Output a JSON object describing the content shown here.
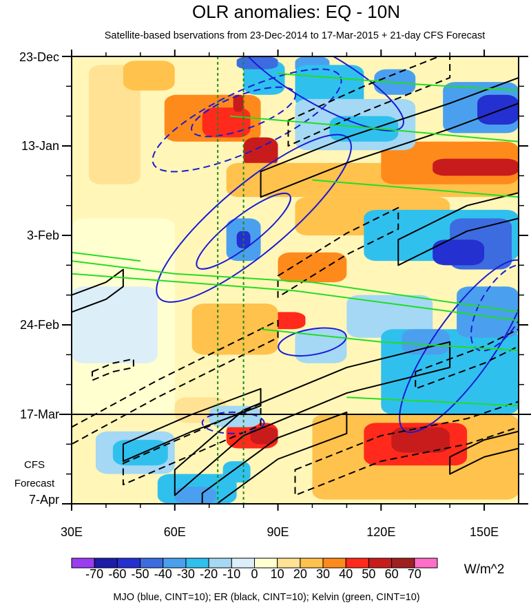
{
  "chart_data": {
    "type": "heatmap",
    "title": "OLR anomalies: EQ - 10N",
    "subtitle": "Satellite-based bservations from 23-Dec-2014 to 17-Mar-2015 + 21-day CFS Forecast",
    "x_axis": {
      "label": "",
      "range": [
        30,
        160
      ],
      "ticks": [
        {
          "value": 30,
          "label": "30E"
        },
        {
          "value": 60,
          "label": "60E"
        },
        {
          "value": 90,
          "label": "90E"
        },
        {
          "value": 120,
          "label": "120E"
        },
        {
          "value": 150,
          "label": "150E"
        }
      ]
    },
    "y_axis": {
      "label": "",
      "range_days": [
        0,
        105
      ],
      "ticks": [
        {
          "day": 0,
          "label": "23-Dec"
        },
        {
          "day": 21,
          "label": "13-Jan"
        },
        {
          "day": 42,
          "label": "3-Feb"
        },
        {
          "day": 63,
          "label": "24-Feb"
        },
        {
          "day": 84,
          "label": "17-Mar"
        },
        {
          "day": 105,
          "label": "7-Apr"
        }
      ],
      "forecast_label_lines": [
        "CFS",
        "Forecast"
      ]
    },
    "forecast_start_day": 84,
    "reference_longitudes": [
      72.5,
      80
    ],
    "colorbar": {
      "units": "W/m^2",
      "levels": [
        -70,
        -60,
        -50,
        -40,
        -30,
        -20,
        -10,
        0,
        10,
        20,
        30,
        40,
        50,
        60,
        70
      ],
      "tick_labels": [
        "-70",
        "-60",
        "-50",
        "-40",
        "-30",
        "-20",
        "-10",
        "0",
        "10",
        "20",
        "30",
        "40",
        "50",
        "60",
        "70"
      ],
      "colors": [
        "#9a3cf0",
        "#1c1ca8",
        "#2430d0",
        "#3c6ce0",
        "#4aa0ee",
        "#30c0ee",
        "#a4d8f4",
        "#dceef8",
        "#ffffd0",
        "#ffe294",
        "#ffc24c",
        "#ff8a1c",
        "#ff2a1c",
        "#c81c1c",
        "#a02020",
        "#ff6ec8"
      ]
    },
    "anomaly_cells": [
      {
        "lon": [
          35,
          50
        ],
        "day": [
          2,
          30
        ],
        "value": 15
      },
      {
        "lon": [
          57,
          85
        ],
        "day": [
          9,
          20
        ],
        "value": 30
      },
      {
        "lon": [
          80,
          90
        ],
        "day": [
          19,
          26
        ],
        "value": 50
      },
      {
        "lon": [
          68,
          82
        ],
        "day": [
          12,
          19
        ],
        "value": 40
      },
      {
        "lon": [
          77,
          80
        ],
        "day": [
          9,
          13
        ],
        "value": 50
      },
      {
        "lon": [
          45,
          60
        ],
        "day": [
          1,
          8
        ],
        "value": 20
      },
      {
        "lon": [
          75,
          160
        ],
        "day": [
          25,
          33
        ],
        "value": 25
      },
      {
        "lon": [
          120,
          160
        ],
        "day": [
          20,
          30
        ],
        "value": 30
      },
      {
        "lon": [
          135,
          160
        ],
        "day": [
          24,
          28
        ],
        "value": 50
      },
      {
        "lon": [
          90,
          110
        ],
        "day": [
          46,
          53
        ],
        "value": 30
      },
      {
        "lon": [
          95,
          140
        ],
        "day": [
          33,
          42
        ],
        "value": 20
      },
      {
        "lon": [
          85,
          98
        ],
        "day": [
          60,
          64
        ],
        "value": 40
      },
      {
        "lon": [
          65,
          90
        ],
        "day": [
          58,
          70
        ],
        "value": 20
      },
      {
        "lon": [
          75,
          90
        ],
        "day": [
          86,
          92
        ],
        "value": 40
      },
      {
        "lon": [
          82,
          90
        ],
        "day": [
          87,
          91
        ],
        "value": 50
      },
      {
        "lon": [
          100,
          160
        ],
        "day": [
          84,
          104
        ],
        "value": 25
      },
      {
        "lon": [
          115,
          145
        ],
        "day": [
          86,
          96
        ],
        "value": 40
      },
      {
        "lon": [
          123,
          140
        ],
        "day": [
          87,
          93
        ],
        "value": 50
      },
      {
        "lon": [
          60,
          75
        ],
        "day": [
          80,
          86
        ],
        "value": 15
      },
      {
        "lon": [
          30,
          60
        ],
        "day": [
          38,
          84
        ],
        "value": 5
      },
      {
        "lon": [
          80,
          92
        ],
        "day": [
          1,
          9
        ],
        "value": -30
      },
      {
        "lon": [
          78,
          90
        ],
        "day": [
          0,
          3
        ],
        "value": -50
      },
      {
        "lon": [
          95,
          105
        ],
        "day": [
          0,
          4
        ],
        "value": -40
      },
      {
        "lon": [
          95,
          115
        ],
        "day": [
          2,
          12
        ],
        "value": -30
      },
      {
        "lon": [
          118,
          130
        ],
        "day": [
          3,
          9
        ],
        "value": -40
      },
      {
        "lon": [
          138,
          160
        ],
        "day": [
          6,
          18
        ],
        "value": -40
      },
      {
        "lon": [
          148,
          160
        ],
        "day": [
          9,
          16
        ],
        "value": -60
      },
      {
        "lon": [
          95,
          130
        ],
        "day": [
          10,
          22
        ],
        "value": -20
      },
      {
        "lon": [
          105,
          125
        ],
        "day": [
          14,
          20
        ],
        "value": -30
      },
      {
        "lon": [
          75,
          85
        ],
        "day": [
          38,
          48
        ],
        "value": -40
      },
      {
        "lon": [
          78,
          82
        ],
        "day": [
          41,
          45
        ],
        "value": -60
      },
      {
        "lon": [
          115,
          160
        ],
        "day": [
          36,
          48
        ],
        "value": -30
      },
      {
        "lon": [
          140,
          158
        ],
        "day": [
          38,
          50
        ],
        "value": -50
      },
      {
        "lon": [
          135,
          150
        ],
        "day": [
          43,
          49
        ],
        "value": -60
      },
      {
        "lon": [
          110,
          135
        ],
        "day": [
          56,
          66
        ],
        "value": -20
      },
      {
        "lon": [
          120,
          160
        ],
        "day": [
          64,
          84
        ],
        "value": -30
      },
      {
        "lon": [
          126,
          140
        ],
        "day": [
          64,
          70
        ],
        "value": -40
      },
      {
        "lon": [
          142,
          160
        ],
        "day": [
          54,
          66
        ],
        "value": -40
      },
      {
        "lon": [
          95,
          110
        ],
        "day": [
          64,
          72
        ],
        "value": -20
      },
      {
        "lon": [
          30,
          55
        ],
        "day": [
          54,
          72
        ],
        "value": -10
      },
      {
        "lon": [
          37,
          60
        ],
        "day": [
          88,
          98
        ],
        "value": -20
      },
      {
        "lon": [
          42,
          58
        ],
        "day": [
          90,
          96
        ],
        "value": -30
      },
      {
        "lon": [
          55,
          78
        ],
        "day": [
          98,
          105
        ],
        "value": -30
      },
      {
        "lon": [
          60,
          72
        ],
        "day": [
          101,
          105
        ],
        "value": -40
      },
      {
        "lon": [
          74,
          82
        ],
        "day": [
          95,
          100
        ],
        "value": -30
      },
      {
        "lon": [
          70,
          85
        ],
        "day": [
          82,
          87
        ],
        "value": -20
      }
    ],
    "contours": [
      {
        "name": "MJO",
        "color": "blue",
        "style": "solid",
        "type": "ellipse",
        "center": [
          83,
          38
        ],
        "semi": [
          36,
          8
        ],
        "tilt_deg": 40
      },
      {
        "name": "MJO",
        "color": "blue",
        "style": "solid",
        "type": "ellipse",
        "center": [
          80,
          41
        ],
        "semi": [
          17,
          3.5
        ],
        "tilt_deg": 38
      },
      {
        "name": "MJO",
        "color": "blue",
        "style": "solid",
        "type": "ellipse",
        "center": [
          102,
          5
        ],
        "semi": [
          28,
          6
        ],
        "tilt_deg": -30
      },
      {
        "name": "MJO",
        "color": "blue",
        "style": "solid",
        "type": "ellipse",
        "center": [
          144,
          68
        ],
        "semi": [
          30,
          7
        ],
        "tilt_deg": 55
      },
      {
        "name": "MJO",
        "color": "blue",
        "style": "solid",
        "type": "ellipse",
        "center": [
          100,
          67
        ],
        "semi": [
          10,
          3
        ],
        "tilt_deg": 10
      },
      {
        "name": "MJO",
        "color": "blue",
        "style": "dashed",
        "type": "ellipse",
        "center": [
          81,
          15
        ],
        "semi": [
          30,
          7
        ],
        "tilt_deg": 25
      },
      {
        "name": "MJO",
        "color": "blue",
        "style": "dashed",
        "type": "ellipse",
        "center": [
          80,
          13
        ],
        "semi": [
          16,
          4
        ],
        "tilt_deg": 20
      },
      {
        "name": "MJO",
        "color": "blue",
        "style": "dashed",
        "type": "ellipse",
        "center": [
          77,
          86
        ],
        "semi": [
          9,
          2.5
        ],
        "tilt_deg": 0
      },
      {
        "name": "MJO",
        "color": "blue",
        "style": "dashed",
        "type": "ellipse",
        "center": [
          155,
          59
        ],
        "semi": [
          14,
          5
        ],
        "tilt_deg": 60
      },
      {
        "name": "ER",
        "color": "black",
        "style": "solid",
        "type": "band",
        "points": [
          [
            60,
            100
          ],
          [
            80,
            86
          ],
          [
            110,
            76
          ],
          [
            140,
            70
          ]
        ],
        "width": 3
      },
      {
        "name": "ER",
        "color": "black",
        "style": "solid",
        "type": "band",
        "points": [
          [
            45,
            93
          ],
          [
            65,
            86
          ],
          [
            85,
            80
          ]
        ],
        "width": 2
      },
      {
        "name": "ER",
        "color": "black",
        "style": "solid",
        "type": "band",
        "points": [
          [
            68,
            105
          ],
          [
            90,
            92
          ],
          [
            110,
            86
          ]
        ],
        "width": 2.5
      },
      {
        "name": "ER",
        "color": "black",
        "style": "solid",
        "type": "band",
        "points": [
          [
            85,
            30
          ],
          [
            110,
            22
          ],
          [
            140,
            14
          ],
          [
            160,
            8
          ]
        ],
        "width": 3
      },
      {
        "name": "ER",
        "color": "black",
        "style": "solid",
        "type": "band",
        "points": [
          [
            125,
            46
          ],
          [
            145,
            38
          ],
          [
            160,
            35
          ]
        ],
        "width": 3
      },
      {
        "name": "ER",
        "color": "black",
        "style": "solid",
        "type": "band",
        "points": [
          [
            30,
            58
          ],
          [
            40,
            55
          ],
          [
            45,
            52
          ]
        ],
        "width": 2
      },
      {
        "name": "ER",
        "color": "black",
        "style": "solid",
        "type": "band",
        "points": [
          [
            140,
            96
          ],
          [
            150,
            92
          ],
          [
            160,
            90
          ]
        ],
        "width": 2
      },
      {
        "name": "ER",
        "color": "black",
        "style": "dashed",
        "type": "band",
        "points": [
          [
            45,
            98
          ],
          [
            65,
            91
          ],
          [
            85,
            84
          ]
        ],
        "width": 2.5
      },
      {
        "name": "ER",
        "color": "black",
        "style": "dashed",
        "type": "band",
        "points": [
          [
            30,
            89
          ],
          [
            55,
            78
          ],
          [
            75,
            70
          ],
          [
            90,
            64
          ]
        ],
        "width": 2
      },
      {
        "name": "ER",
        "color": "black",
        "style": "dashed",
        "type": "band",
        "points": [
          [
            90,
            54
          ],
          [
            110,
            44
          ],
          [
            125,
            38
          ]
        ],
        "width": 2.5
      },
      {
        "name": "ER",
        "color": "black",
        "style": "dashed",
        "type": "band",
        "points": [
          [
            93,
            18
          ],
          [
            115,
            10
          ],
          [
            140,
            2
          ]
        ],
        "width": 3
      },
      {
        "name": "ER",
        "color": "black",
        "style": "dashed",
        "type": "band",
        "points": [
          [
            95,
            100
          ],
          [
            120,
            92
          ],
          [
            145,
            88
          ],
          [
            160,
            84
          ]
        ],
        "width": 3
      },
      {
        "name": "ER",
        "color": "black",
        "style": "dashed",
        "type": "band",
        "points": [
          [
            130,
            76
          ],
          [
            150,
            70
          ],
          [
            160,
            66
          ]
        ],
        "width": 2
      },
      {
        "name": "ER",
        "color": "black",
        "style": "dashed",
        "type": "band",
        "points": [
          [
            36,
            75
          ],
          [
            42,
            73
          ],
          [
            48,
            72
          ]
        ],
        "width": 1
      },
      {
        "name": "Kelvin",
        "color": "green",
        "style": "solid",
        "type": "line",
        "points": [
          [
            30,
            51
          ],
          [
            95,
            55
          ],
          [
            160,
            62
          ]
        ]
      },
      {
        "name": "Kelvin",
        "color": "green",
        "style": "solid",
        "type": "line",
        "points": [
          [
            30,
            48
          ],
          [
            60,
            51
          ],
          [
            100,
            53
          ],
          [
            160,
            60
          ]
        ]
      },
      {
        "name": "Kelvin",
        "color": "green",
        "style": "solid",
        "type": "line",
        "points": [
          [
            30,
            46
          ],
          [
            50,
            48
          ]
        ]
      },
      {
        "name": "Kelvin",
        "color": "green",
        "style": "solid",
        "type": "line",
        "points": [
          [
            76,
            14
          ],
          [
            120,
            17
          ],
          [
            160,
            20
          ]
        ]
      },
      {
        "name": "Kelvin",
        "color": "green",
        "style": "solid",
        "type": "line",
        "points": [
          [
            90,
            4
          ],
          [
            130,
            6.5
          ],
          [
            160,
            8
          ]
        ]
      },
      {
        "name": "Kelvin",
        "color": "green",
        "style": "solid",
        "type": "line",
        "points": [
          [
            100,
            29
          ],
          [
            130,
            31
          ],
          [
            160,
            33
          ]
        ]
      },
      {
        "name": "Kelvin",
        "color": "green",
        "style": "solid",
        "type": "line",
        "points": [
          [
            85,
            64
          ],
          [
            120,
            67
          ],
          [
            160,
            69
          ]
        ]
      },
      {
        "name": "Kelvin",
        "color": "green",
        "style": "solid",
        "type": "line",
        "points": [
          [
            110,
            80
          ],
          [
            160,
            82
          ]
        ]
      }
    ],
    "footnote": "MJO (blue, CINT=10); ER (black, CINT=10); Kelvin (green, CINT=10)"
  }
}
